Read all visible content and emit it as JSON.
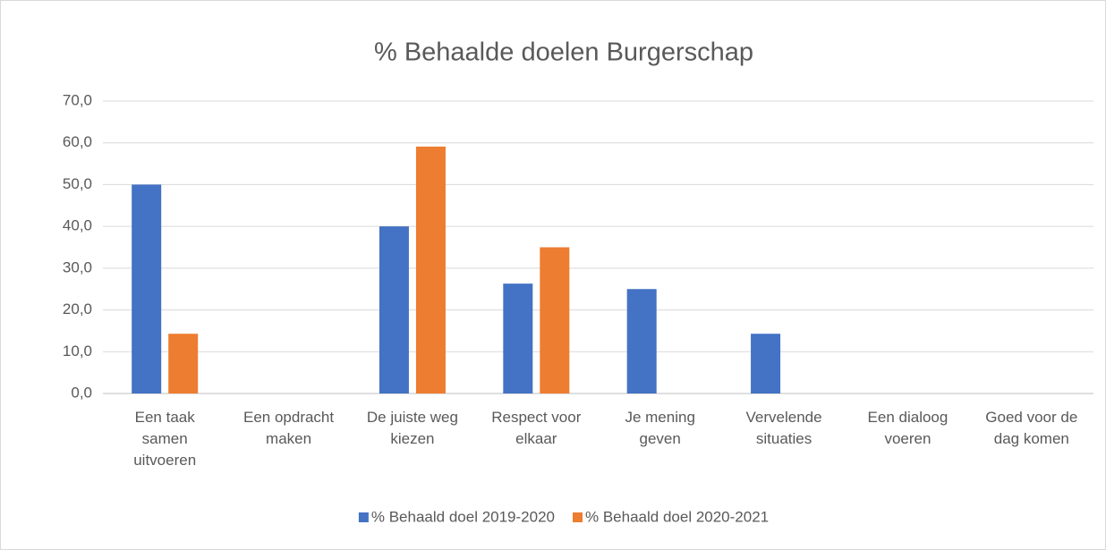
{
  "chart_data": {
    "type": "bar",
    "title": "% Behaalde doelen Burgerschap",
    "categories": [
      "Een taak samen uitvoeren",
      "Een opdracht maken",
      "De juiste weg kiezen",
      "Respect voor elkaar",
      "Je mening geven",
      "Vervelende situaties",
      "Een dialoog voeren",
      "Goed voor de dag komen"
    ],
    "series": [
      {
        "name": "% Behaald doel 2019-2020",
        "color": "#4472c4",
        "values": [
          50,
          null,
          40,
          26.3,
          25,
          14.3,
          null,
          null
        ]
      },
      {
        "name": "% Behaald doel 2020-2021",
        "color": "#ed7d31",
        "values": [
          14.3,
          null,
          59.1,
          35,
          null,
          null,
          null,
          null
        ]
      }
    ],
    "ylim": [
      0,
      70
    ],
    "yticks": [
      {
        "value": 0,
        "label": "0,0"
      },
      {
        "value": 10,
        "label": "10,0"
      },
      {
        "value": 20,
        "label": "20,0"
      },
      {
        "value": 30,
        "label": "30,0"
      },
      {
        "value": 40,
        "label": "40,0"
      },
      {
        "value": 50,
        "label": "50,0"
      },
      {
        "value": 60,
        "label": "60,0"
      },
      {
        "value": 70,
        "label": "70,0"
      }
    ],
    "grid": true,
    "legend": "bottom"
  }
}
